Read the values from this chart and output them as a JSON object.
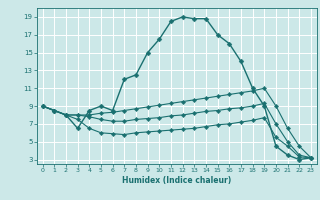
{
  "xlabel": "Humidex (Indice chaleur)",
  "xlim": [
    -0.5,
    23.5
  ],
  "ylim": [
    2.5,
    20
  ],
  "xticks": [
    0,
    1,
    2,
    3,
    4,
    5,
    6,
    7,
    8,
    9,
    10,
    11,
    12,
    13,
    14,
    15,
    16,
    17,
    18,
    19,
    20,
    21,
    22,
    23
  ],
  "yticks": [
    3,
    5,
    7,
    9,
    11,
    13,
    15,
    17,
    19
  ],
  "bg_color": "#cce8e8",
  "grid_color": "#ffffff",
  "line_color": "#1a7070",
  "lines": [
    {
      "x": [
        0,
        1,
        2,
        3,
        4,
        5,
        6,
        7,
        8,
        9,
        10,
        11,
        12,
        13,
        14,
        15,
        16,
        17,
        18,
        19,
        20,
        21,
        22,
        23
      ],
      "y": [
        9.0,
        8.5,
        8.0,
        6.5,
        8.5,
        9.0,
        8.5,
        12.0,
        12.5,
        15.0,
        16.5,
        18.5,
        19.0,
        18.8,
        18.8,
        17.0,
        16.0,
        14.0,
        11.0,
        9.0,
        4.5,
        3.5,
        3.0,
        3.2
      ]
    },
    {
      "x": [
        0,
        1,
        2,
        3,
        4,
        5,
        6,
        7,
        8,
        9,
        10,
        11,
        12,
        13,
        14,
        15,
        16,
        17,
        18,
        19,
        20,
        21,
        22,
        23
      ],
      "y": [
        9.0,
        8.5,
        8.0,
        8.0,
        8.0,
        8.2,
        8.3,
        8.5,
        8.7,
        8.9,
        9.1,
        9.3,
        9.5,
        9.7,
        9.9,
        10.1,
        10.3,
        10.5,
        10.7,
        11.0,
        9.0,
        6.5,
        4.5,
        3.2
      ]
    },
    {
      "x": [
        0,
        1,
        2,
        3,
        4,
        5,
        6,
        7,
        8,
        9,
        10,
        11,
        12,
        13,
        14,
        15,
        16,
        17,
        18,
        19,
        20,
        21,
        22,
        23
      ],
      "y": [
        9.0,
        8.5,
        8.0,
        8.0,
        7.8,
        7.5,
        7.3,
        7.3,
        7.5,
        7.6,
        7.7,
        7.9,
        8.0,
        8.2,
        8.4,
        8.5,
        8.7,
        8.8,
        9.0,
        9.3,
        7.0,
        5.0,
        3.5,
        3.2
      ]
    },
    {
      "x": [
        0,
        1,
        2,
        3,
        4,
        5,
        6,
        7,
        8,
        9,
        10,
        11,
        12,
        13,
        14,
        15,
        16,
        17,
        18,
        19,
        20,
        21,
        22,
        23
      ],
      "y": [
        9.0,
        8.5,
        8.0,
        7.5,
        6.5,
        6.0,
        5.9,
        5.8,
        6.0,
        6.1,
        6.2,
        6.3,
        6.4,
        6.5,
        6.7,
        6.9,
        7.0,
        7.2,
        7.4,
        7.7,
        5.5,
        4.5,
        3.3,
        3.2
      ]
    }
  ]
}
